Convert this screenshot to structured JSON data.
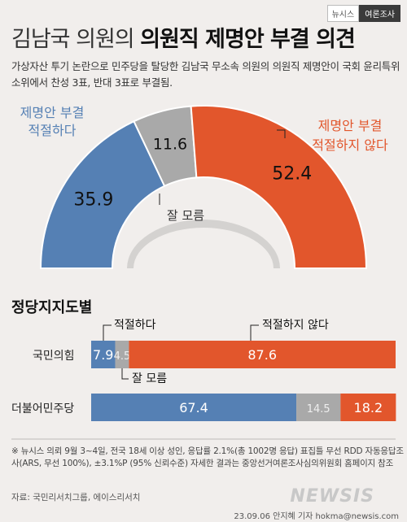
{
  "brand": {
    "left": "뉴시스",
    "right": "여론조사"
  },
  "title": {
    "part1": "김남국 의원의 ",
    "part2": "의원직 제명안 부결 의견"
  },
  "subtitle": "가상자산 투기 논란으로 민주당을 탈당한 김남국 무소속 의원의 의원직 제명안이 국회 윤리특위 소위에서 찬성 3표, 반대 3표로 부결됨.",
  "colors": {
    "blue": "#5580b4",
    "gray": "#a9a9a9",
    "orange": "#e2562c",
    "white": "#ffffff"
  },
  "chart_data": [
    {
      "type": "pie",
      "subtype": "semicircle-donut",
      "slices": [
        {
          "label_lines": [
            "제명안 부결",
            "적절하다"
          ],
          "value": 35.9,
          "value_label": "35.9",
          "color": "#5580b4"
        },
        {
          "label_lines": [
            "잘 모름"
          ],
          "value": 11.6,
          "value_label": "11.6",
          "color": "#a9a9a9"
        },
        {
          "label_lines": [
            "제명안 부결",
            "적절하지 않다"
          ],
          "value": 52.4,
          "value_label": "52.4",
          "color": "#e2562c"
        }
      ]
    },
    {
      "type": "bar",
      "subtype": "stacked-horizontal-100",
      "title": "정당지지도별",
      "categories": [
        "국민의힘",
        "더불어민주당"
      ],
      "series": [
        {
          "name": "적절하다",
          "values": [
            7.9,
            67.4
          ],
          "labels": [
            "7.9",
            "67.4"
          ],
          "color": "#5580b4"
        },
        {
          "name": "잘 모름",
          "values": [
            4.5,
            14.5
          ],
          "labels": [
            "4.5",
            "14.5"
          ],
          "color": "#a9a9a9"
        },
        {
          "name": "적절하지 않다",
          "values": [
            87.6,
            18.2
          ],
          "labels": [
            "87.6",
            "18.2"
          ],
          "color": "#e2562c"
        }
      ],
      "xlim": [
        0,
        100
      ]
    }
  ],
  "footnote": "※ 뉴시스 의뢰 9월 3~4일, 전국 18세 이상 성인, 응답률 2.1%(총 1002명 응답) 표집틀 무선 RDD 자동응답조사(ARS, 무선 100%), ±3.1%P (95% 신뢰수준) 자세한 결과는 중앙선거여론조사심의위원회 홈페이지 참조",
  "source": "자료: 국민리서치그룹, 에이스리서치",
  "credit": "23.09.06 안지혜 기자 hokma@newsis.com",
  "watermark": "NEWSIS"
}
